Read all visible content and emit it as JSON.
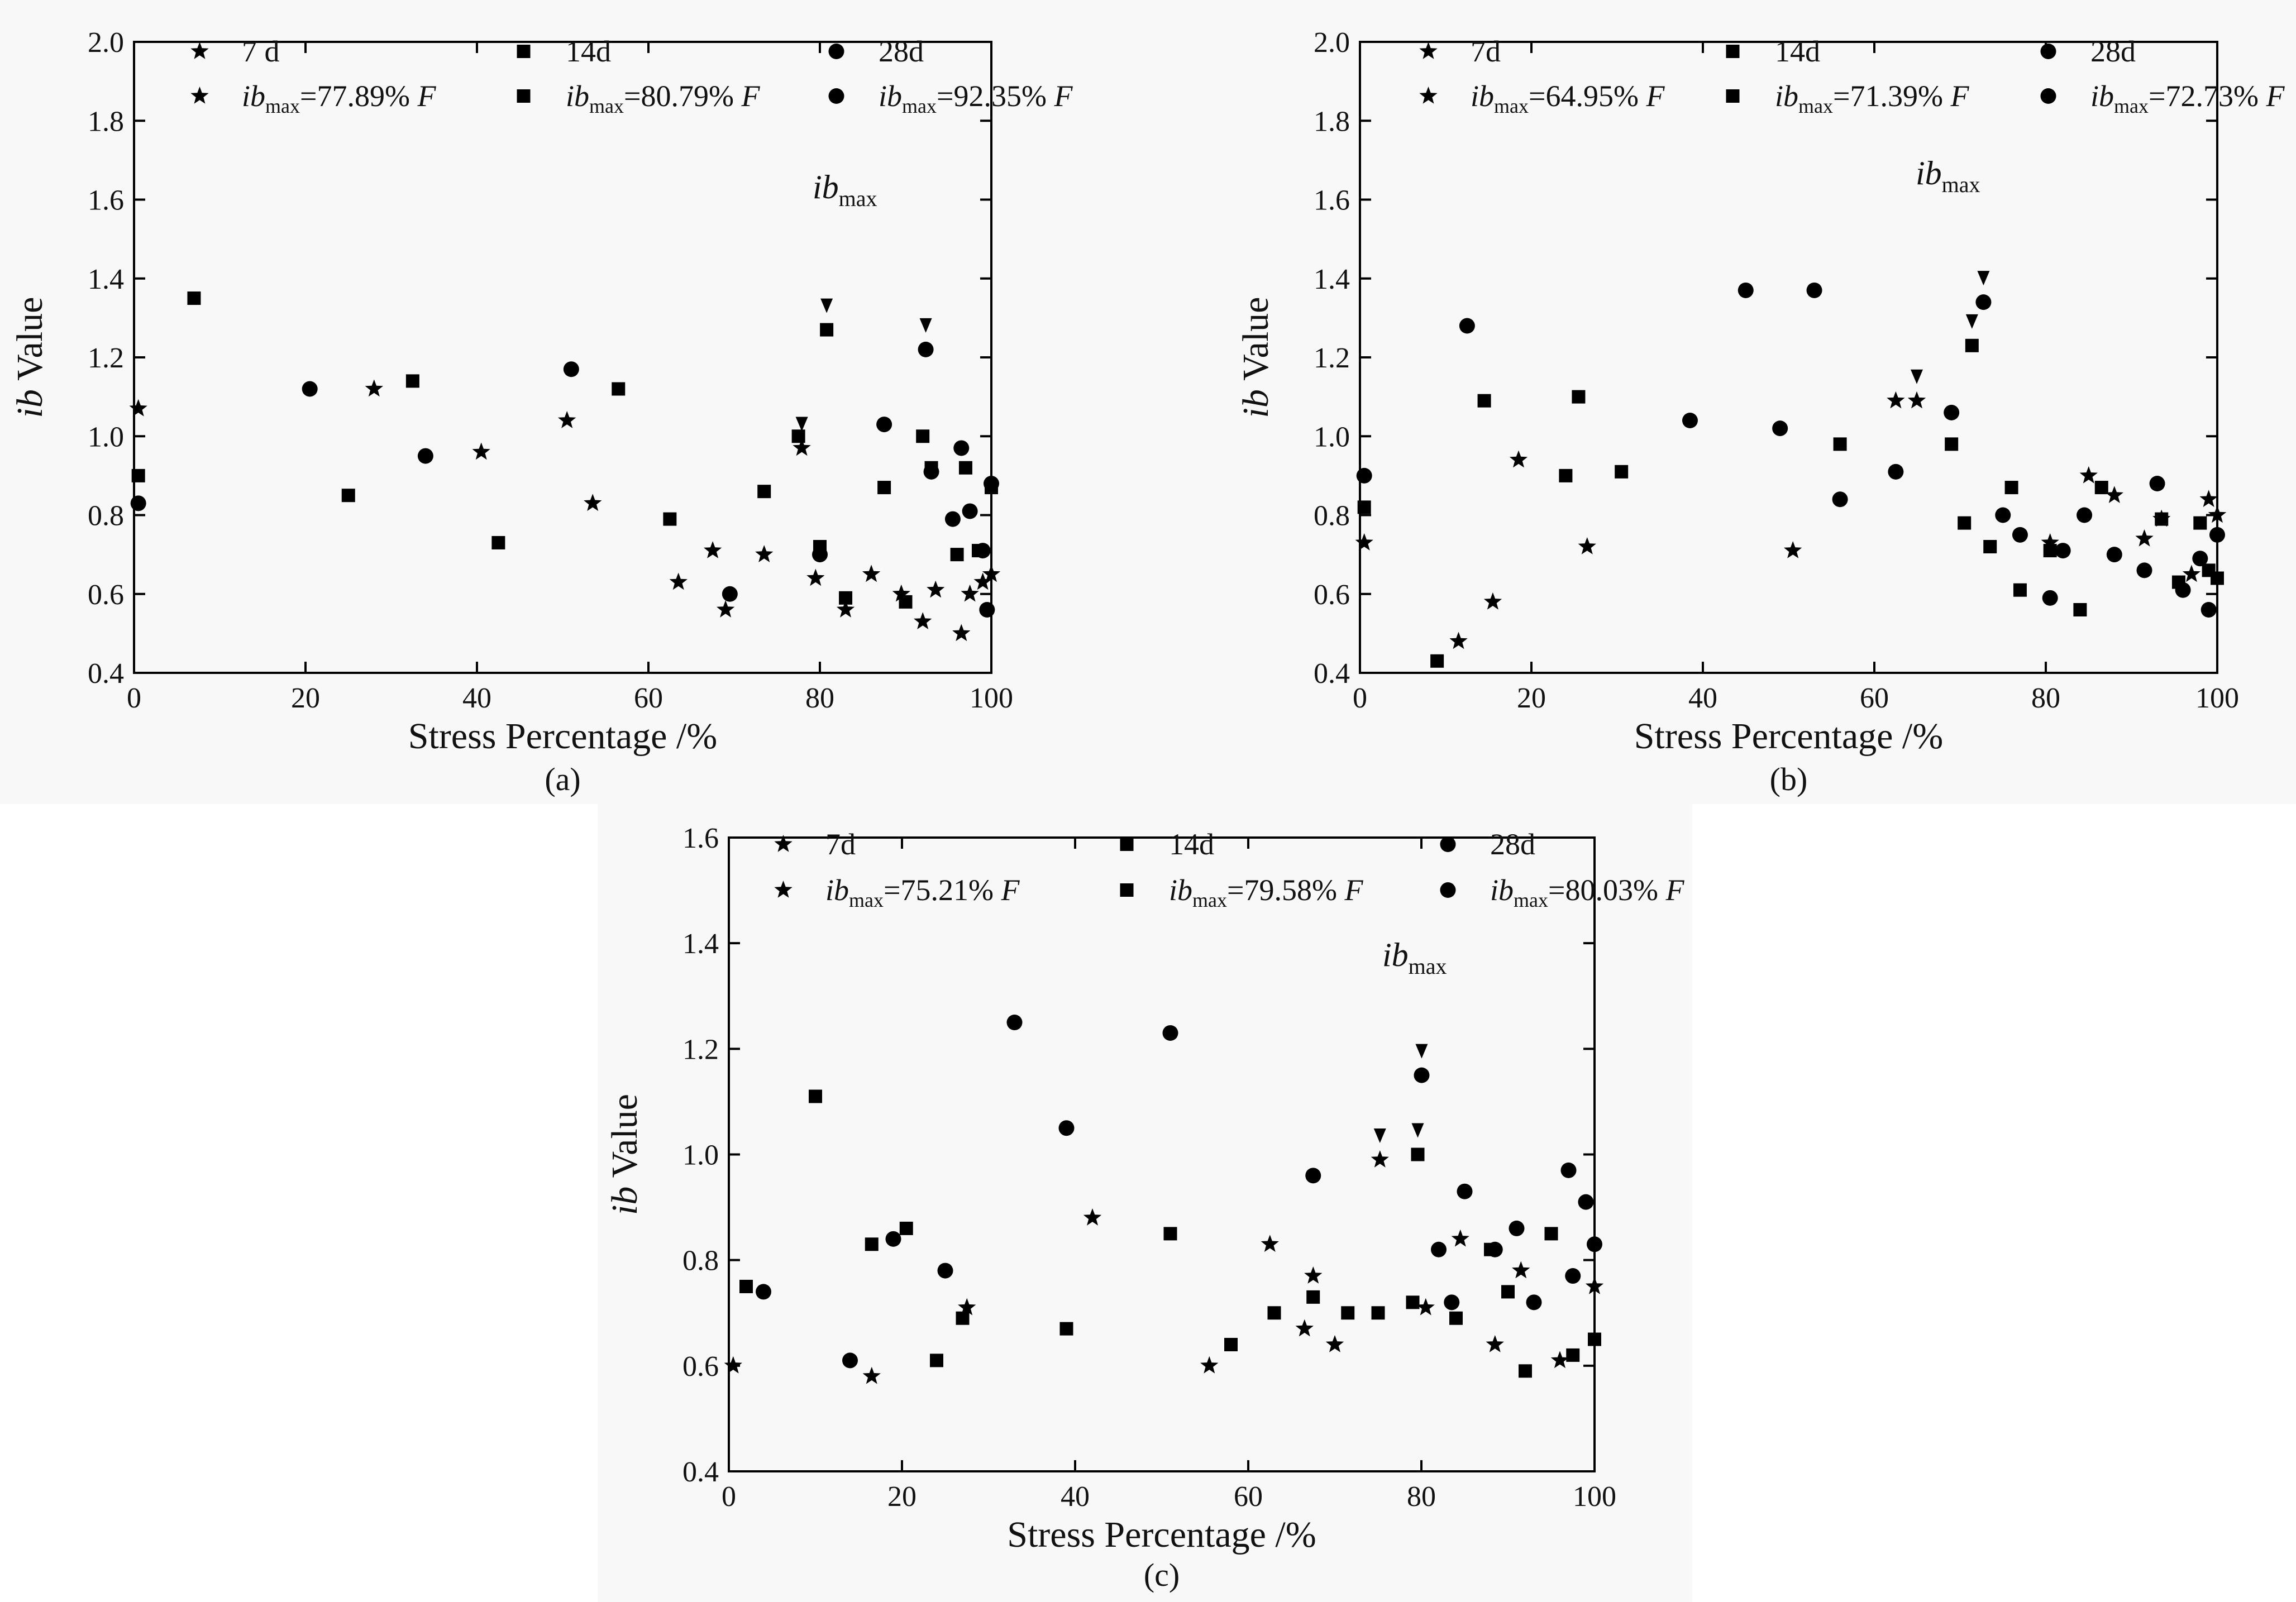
{
  "colors": {
    "d7": "#ff0000",
    "d14": "#0f0f82",
    "d28": "#1414ff",
    "axis": "#000000",
    "panel_bg": "#f8f8f8"
  },
  "chart_data": [
    {
      "id": "a",
      "type": "line",
      "caption": "(a)",
      "xlabel": "Stress Percentage /%",
      "ylabel_italic": "ib",
      "ylabel_rest": " Value",
      "xlim": [
        0,
        100
      ],
      "ylim": [
        0.4,
        2.0
      ],
      "xticks": [
        0,
        20,
        40,
        60,
        80,
        100
      ],
      "yticks": [
        0.4,
        0.6,
        0.8,
        1.0,
        1.2,
        1.4,
        1.6,
        1.8,
        2.0
      ],
      "annotation_main": "ib",
      "annotation_sub": "max",
      "legend": [
        {
          "key": "7d",
          "label": "7 d"
        },
        {
          "key": "14d",
          "label": "14d"
        },
        {
          "key": "28d",
          "label": "28d"
        },
        {
          "key": "7d",
          "pre": "ib",
          "sub": "max",
          "post": "=77.89% ",
          "ital": "F"
        },
        {
          "key": "14d",
          "pre": "ib",
          "sub": "max",
          "post": "=80.79% ",
          "ital": "F"
        },
        {
          "key": "28d",
          "pre": "ib",
          "sub": "max",
          "post": "=92.35% ",
          "ital": "F"
        }
      ],
      "ibmax_markers": [
        {
          "key": "7d",
          "x": 77.89,
          "y": 0.97
        },
        {
          "key": "14d",
          "x": 80.79,
          "y": 1.27
        },
        {
          "key": "28d",
          "x": 92.35,
          "y": 1.22
        }
      ],
      "series": [
        {
          "name": "7 d",
          "key": "7d",
          "marker": "star",
          "x": [
            0.5,
            28,
            40.5,
            50.5,
            53.5,
            63.5,
            67.5,
            69,
            73.5,
            77.89,
            79.5,
            83,
            86,
            89.5,
            92,
            93.5,
            96.5,
            97.5,
            99,
            100
          ],
          "y": [
            1.07,
            1.12,
            0.96,
            1.04,
            0.83,
            0.63,
            0.71,
            0.56,
            0.7,
            0.97,
            0.64,
            0.56,
            0.65,
            0.6,
            0.53,
            0.61,
            0.5,
            0.6,
            0.63,
            0.65
          ]
        },
        {
          "name": "14d",
          "key": "14d",
          "marker": "square",
          "x": [
            0.5,
            7,
            25,
            32.5,
            42.5,
            56.5,
            62.5,
            73.5,
            77.5,
            80,
            80.79,
            83,
            87.5,
            90,
            92,
            93,
            96,
            97,
            98.5,
            100
          ],
          "y": [
            0.9,
            1.35,
            0.85,
            1.14,
            0.73,
            1.12,
            0.79,
            0.86,
            1.0,
            0.72,
            1.27,
            0.59,
            0.87,
            0.58,
            1.0,
            0.92,
            0.7,
            0.92,
            0.71,
            0.87
          ]
        },
        {
          "name": "28d",
          "key": "28d",
          "marker": "circle",
          "x": [
            0.5,
            20.5,
            34,
            51,
            69.5,
            80,
            87.5,
            92.35,
            93,
            95.5,
            96.5,
            97.5,
            99,
            99.5,
            100
          ],
          "y": [
            0.83,
            1.12,
            0.95,
            1.17,
            0.6,
            0.7,
            1.03,
            1.22,
            0.91,
            0.79,
            0.97,
            0.81,
            0.71,
            0.56,
            0.88
          ]
        }
      ]
    },
    {
      "id": "b",
      "type": "line",
      "caption": "(b)",
      "xlabel": "Stress Percentage /%",
      "ylabel_italic": "ib",
      "ylabel_rest": " Value",
      "xlim": [
        0,
        100
      ],
      "ylim": [
        0.4,
        2.0
      ],
      "xticks": [
        0,
        20,
        40,
        60,
        80,
        100
      ],
      "yticks": [
        0.4,
        0.6,
        0.8,
        1.0,
        1.2,
        1.4,
        1.6,
        1.8,
        2.0
      ],
      "annotation_main": "ib",
      "annotation_sub": "max",
      "legend": [
        {
          "key": "7d",
          "label": "7d"
        },
        {
          "key": "14d",
          "label": "14d"
        },
        {
          "key": "28d",
          "label": "28d"
        },
        {
          "key": "7d",
          "pre": "ib",
          "sub": "max",
          "post": "=64.95% ",
          "ital": "F"
        },
        {
          "key": "14d",
          "pre": "ib",
          "sub": "max",
          "post": "=71.39% ",
          "ital": "F"
        },
        {
          "key": "28d",
          "pre": "ib",
          "sub": "max",
          "post": "=72.73% ",
          "ital": "F"
        }
      ],
      "ibmax_markers": [
        {
          "key": "7d",
          "x": 64.95,
          "y": 1.09
        },
        {
          "key": "14d",
          "x": 71.39,
          "y": 1.23
        },
        {
          "key": "28d",
          "x": 72.73,
          "y": 1.34
        }
      ],
      "series": [
        {
          "name": "7d",
          "key": "7d",
          "marker": "star",
          "x": [
            0.5,
            11.5,
            15.5,
            18.5,
            26.5,
            50.5,
            62.5,
            64.95,
            80.5,
            85,
            88,
            91.5,
            93.5,
            97,
            99,
            100
          ],
          "y": [
            0.73,
            0.48,
            0.58,
            0.94,
            0.72,
            0.71,
            1.09,
            1.09,
            0.73,
            0.9,
            0.85,
            0.74,
            0.79,
            0.65,
            0.84,
            0.8
          ]
        },
        {
          "name": "14d",
          "key": "14d",
          "marker": "square",
          "x": [
            0.5,
            9,
            14.5,
            24,
            25.5,
            30.5,
            56,
            69,
            70.5,
            71.39,
            73.5,
            76,
            77,
            80.5,
            84,
            86.5,
            93.5,
            95.5,
            98,
            99,
            100
          ],
          "y": [
            0.82,
            0.43,
            1.09,
            0.9,
            1.1,
            0.91,
            0.98,
            0.98,
            0.78,
            1.23,
            0.72,
            0.87,
            0.61,
            0.71,
            0.56,
            0.87,
            0.79,
            0.63,
            0.78,
            0.66,
            0.64
          ]
        },
        {
          "name": "28d",
          "key": "28d",
          "marker": "circle",
          "x": [
            0.5,
            12.5,
            38.5,
            45,
            49,
            53,
            56,
            62.5,
            69,
            72.73,
            75,
            77,
            80.5,
            82,
            84.5,
            88,
            91.5,
            93,
            96,
            98,
            99,
            100
          ],
          "y": [
            0.9,
            1.28,
            1.04,
            1.37,
            1.02,
            1.37,
            0.84,
            0.91,
            1.06,
            1.34,
            0.8,
            0.75,
            0.59,
            0.71,
            0.8,
            0.7,
            0.66,
            0.88,
            0.61,
            0.69,
            0.56,
            0.75
          ]
        }
      ]
    },
    {
      "id": "c",
      "type": "line",
      "caption": "(c)",
      "xlabel": "Stress Percentage /%",
      "ylabel_italic": "ib",
      "ylabel_rest": " Value",
      "xlim": [
        0,
        100
      ],
      "ylim": [
        0.4,
        1.6
      ],
      "xticks": [
        0,
        20,
        40,
        60,
        80,
        100
      ],
      "yticks": [
        0.4,
        0.6,
        0.8,
        1.0,
        1.2,
        1.4,
        1.6
      ],
      "annotation_main": "ib",
      "annotation_sub": "max",
      "legend": [
        {
          "key": "7d",
          "label": "7d"
        },
        {
          "key": "14d",
          "label": "14d"
        },
        {
          "key": "28d",
          "label": "28d"
        },
        {
          "key": "7d",
          "pre": "ib",
          "sub": "max",
          "post": "=75.21% ",
          "ital": "F"
        },
        {
          "key": "14d",
          "pre": "ib",
          "sub": "max",
          "post": "=79.58% ",
          "ital": "F"
        },
        {
          "key": "28d",
          "pre": "ib",
          "sub": "max",
          "post": "=80.03% ",
          "ital": "F"
        }
      ],
      "ibmax_markers": [
        {
          "key": "7d",
          "x": 75.21,
          "y": 0.99
        },
        {
          "key": "14d",
          "x": 79.58,
          "y": 1.0
        },
        {
          "key": "28d",
          "x": 80.03,
          "y": 1.15
        }
      ],
      "series": [
        {
          "name": "7d",
          "key": "7d",
          "marker": "star",
          "x": [
            0.5,
            16.5,
            27.5,
            42,
            55.5,
            62.5,
            66.5,
            67.5,
            70,
            75.21,
            80.5,
            84.5,
            88.5,
            91.5,
            96,
            100
          ],
          "y": [
            0.6,
            0.58,
            0.71,
            0.88,
            0.6,
            0.83,
            0.67,
            0.77,
            0.64,
            0.99,
            0.71,
            0.84,
            0.64,
            0.78,
            0.61,
            0.75
          ]
        },
        {
          "name": "14d",
          "key": "14d",
          "marker": "square",
          "x": [
            2,
            10,
            16.5,
            20.5,
            24,
            27,
            39,
            51,
            58,
            63,
            67.5,
            71.5,
            75,
            79,
            79.58,
            84,
            88,
            90,
            92,
            95,
            97.5,
            100
          ],
          "y": [
            0.75,
            1.11,
            0.83,
            0.86,
            0.61,
            0.69,
            0.67,
            0.85,
            0.64,
            0.7,
            0.73,
            0.7,
            0.7,
            0.72,
            1.0,
            0.69,
            0.82,
            0.74,
            0.59,
            0.85,
            0.62,
            0.65
          ]
        },
        {
          "name": "28d",
          "key": "28d",
          "marker": "circle",
          "x": [
            4,
            14,
            19,
            25,
            33,
            39,
            51,
            67.5,
            80.03,
            82,
            83.5,
            85,
            88.5,
            91,
            93,
            97,
            97.5,
            99,
            100
          ],
          "y": [
            0.74,
            0.61,
            0.84,
            0.78,
            1.25,
            1.05,
            1.23,
            0.96,
            1.15,
            0.82,
            0.72,
            0.93,
            0.82,
            0.86,
            0.72,
            0.97,
            0.77,
            0.91,
            0.83
          ]
        }
      ]
    }
  ]
}
